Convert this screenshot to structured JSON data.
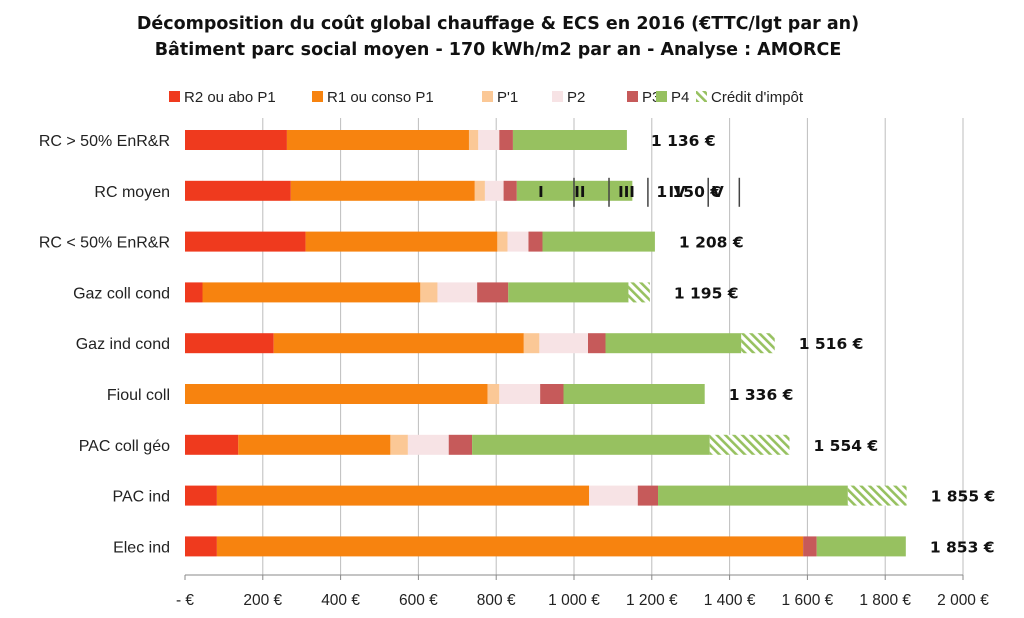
{
  "chart_data": {
    "type": "bar",
    "orientation": "horizontal",
    "stacked": true,
    "title": "Décomposition du coût global chauffage & ECS en 2016 (€TTC/lgt par an)",
    "subtitle": "Bâtiment parc social moyen - 170 kWh/m2 par an - Analyse : AMORCE",
    "xlim": [
      0,
      2000
    ],
    "grid": true,
    "legend_position": "top",
    "ticks": [
      0,
      200,
      400,
      600,
      800,
      1000,
      1200,
      1400,
      1600,
      1800,
      2000
    ],
    "tick_labels": [
      "-   €",
      "200 €",
      "400 €",
      "600 €",
      "800 €",
      "1 000 €",
      "1 200 €",
      "1 400 €",
      "1 600 €",
      "1 800 €",
      "2 000 €"
    ],
    "categories": [
      "RC > 50% EnR&R",
      "RC moyen",
      "RC < 50% EnR&R",
      "Gaz coll cond",
      "Gaz ind cond",
      "Fioul coll",
      "PAC coll géo",
      "PAC ind",
      "Elec ind"
    ],
    "series": [
      {
        "name": "R2 ou abo P1",
        "color": "#ef3a1e",
        "values": [
          262,
          272,
          310,
          45,
          228,
          0,
          137,
          82,
          82
        ]
      },
      {
        "name": "R1 ou conso P1",
        "color": "#f7830f",
        "values": [
          468,
          473,
          493,
          560,
          643,
          778,
          391,
          957,
          1507
        ]
      },
      {
        "name": "P'1",
        "color": "#fbc896",
        "values": [
          24,
          26,
          26,
          44,
          40,
          30,
          45,
          0,
          0
        ]
      },
      {
        "name": "P2",
        "color": "#f7e3e5",
        "values": [
          54,
          48,
          54,
          102,
          125,
          105,
          105,
          125,
          0
        ]
      },
      {
        "name": "P3",
        "color": "#c65a5a",
        "values": [
          35,
          34,
          36,
          80,
          45,
          60,
          60,
          52,
          35
        ]
      },
      {
        "name": "P4",
        "color": "#97c160",
        "values": [
          293,
          297,
          289,
          309,
          349,
          363,
          611,
          488,
          229
        ]
      },
      {
        "name": "Crédit d'impôt",
        "color": "#97c160",
        "pattern": "hatch",
        "values": [
          0,
          0,
          0,
          55,
          86,
          0,
          205,
          151,
          0
        ]
      }
    ],
    "totals": [
      "1 136 €",
      "1 150 €",
      "1 208 €",
      "1 195 €",
      "1 516 €",
      "1 336 €",
      "1 554 €",
      "1 855 €",
      "1 853 €"
    ],
    "annotations": {
      "category": "RC moyen",
      "labels": [
        "I",
        "II",
        "III",
        "IV",
        "V"
      ],
      "label_values": [
        915,
        1015,
        1135,
        1265,
        1370
      ],
      "separator_values": [
        1000,
        1090,
        1190,
        1345,
        1425
      ]
    }
  }
}
